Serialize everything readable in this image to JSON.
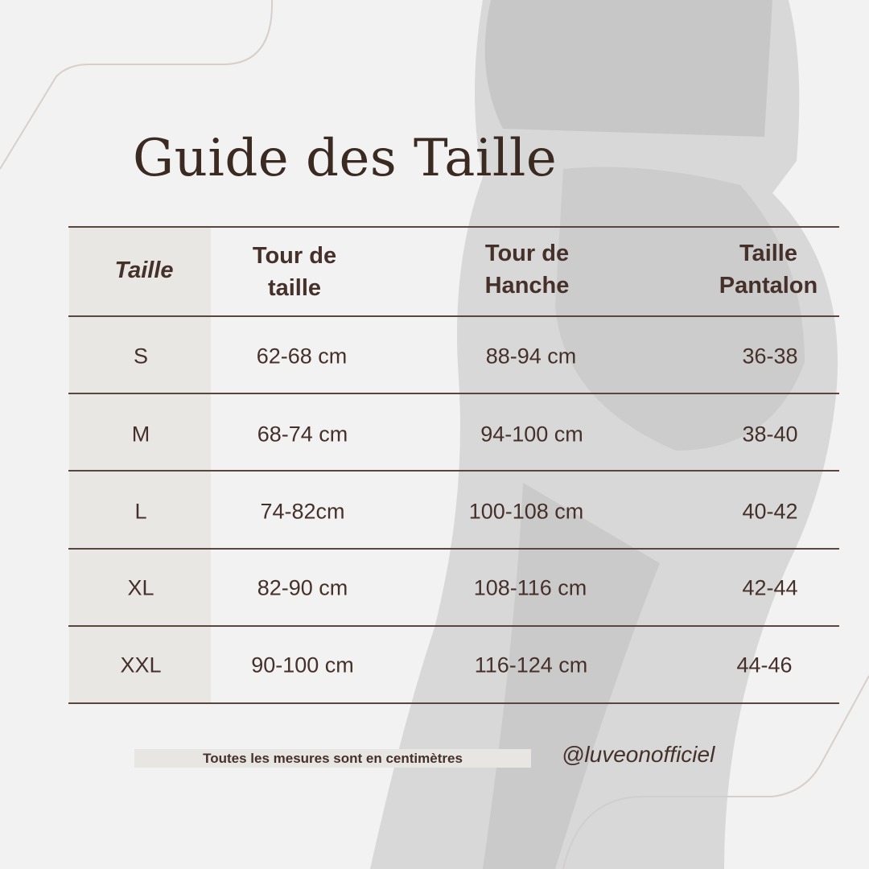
{
  "title": "Guide des Taille",
  "table": {
    "headers": [
      "Taille",
      "Tour de taille",
      "Tour de Hanche",
      "Taille Pantalon"
    ],
    "header_lines": [
      [
        "Taille"
      ],
      [
        "Tour de",
        "taille"
      ],
      [
        "Tour de",
        "Hanche"
      ],
      [
        "Taille",
        "Pantalon"
      ]
    ],
    "rows": [
      [
        "S",
        "62-68 cm",
        "88-94 cm",
        "36-38"
      ],
      [
        "M",
        "68-74 cm",
        "94-100 cm",
        "38-40"
      ],
      [
        "L",
        "74-82cm",
        "100-108 cm",
        "40-42"
      ],
      [
        "XL",
        "82-90 cm",
        "108-116 cm",
        "42-44"
      ],
      [
        "XXL",
        "90-100 cm",
        "116-124 cm",
        "44-46"
      ]
    ]
  },
  "footer": {
    "note": "Toutes les mesures sont en centimètres",
    "handle": "@luveonofficiel"
  },
  "colors": {
    "text": "#45302a",
    "background": "#f2f2f2",
    "shade": "#e8e6e3"
  }
}
